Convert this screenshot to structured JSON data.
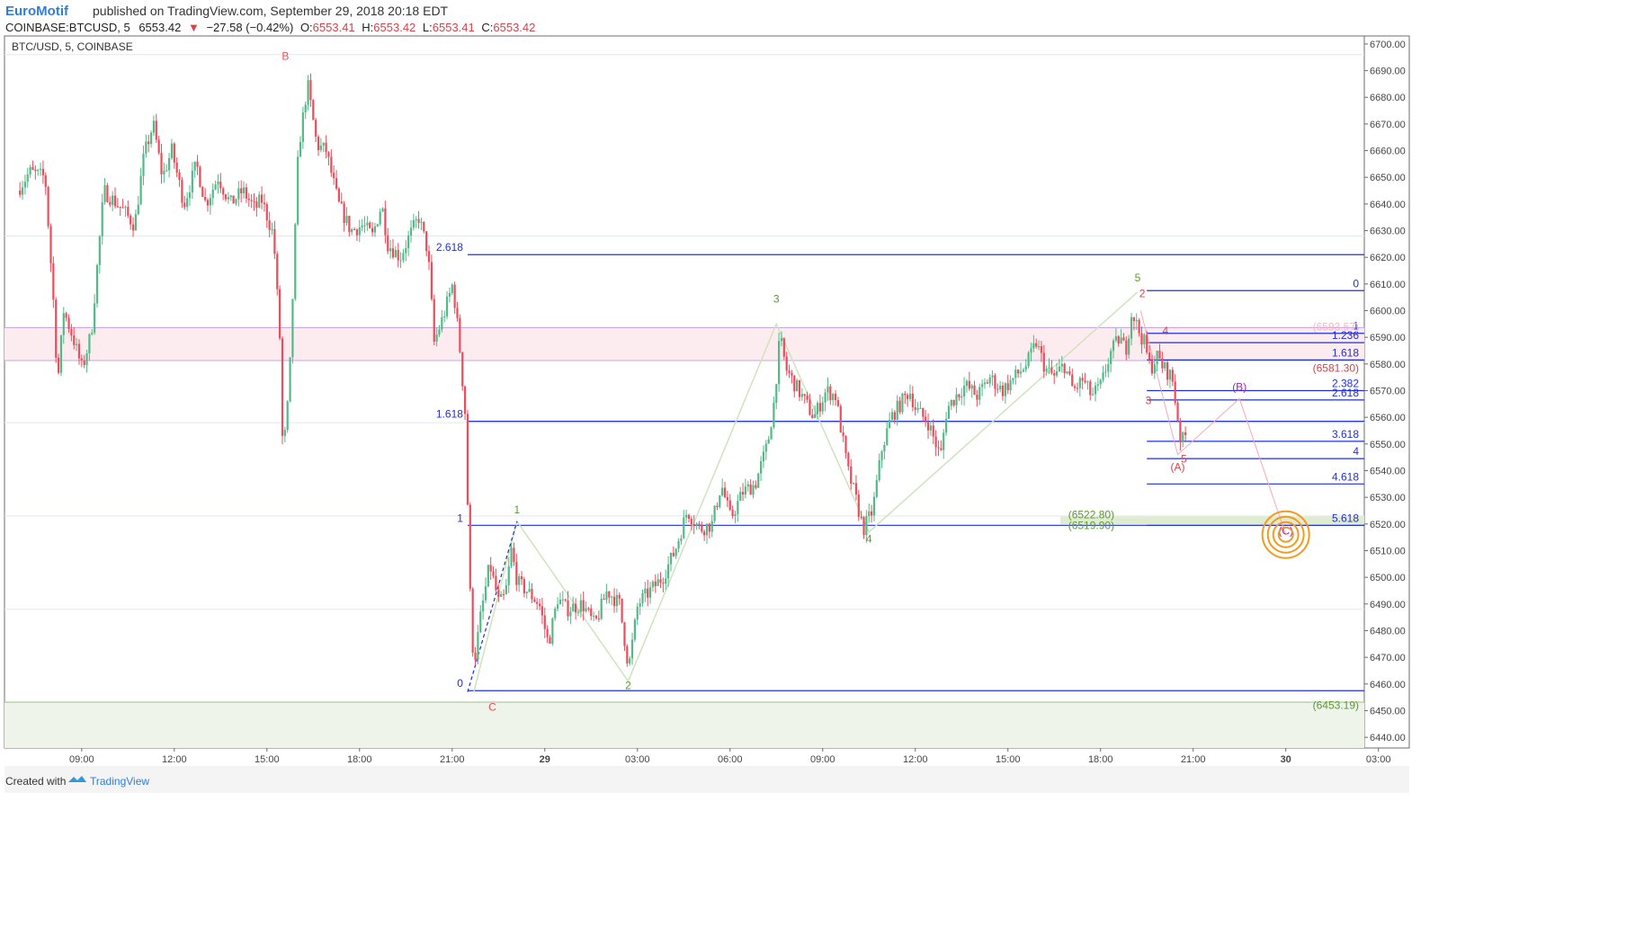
{
  "header": {
    "author": "EuroMotif",
    "published_text": "published on TradingView.com, September 29, 2018 20:18 EDT",
    "symbol": "COINBASE:BTCUSD, 5",
    "last_price": "6553.42",
    "change_arrow": "▼",
    "change": "−27.58 (−0.42%)",
    "o_label": "O:",
    "o_value": "6553.41",
    "h_label": "H:",
    "h_value": "6553.42",
    "l_label": "L:",
    "l_value": "6553.41",
    "c_label": "C:",
    "c_value": "6553.42"
  },
  "pane_title": "BTC/USD, 5, COINBASE",
  "footer": {
    "created_with": "Created with",
    "brand": "TradingView"
  },
  "colors": {
    "up": "#53b987",
    "down": "#eb4d5c",
    "blue_level": "#1f2fdc",
    "green_wave": "#5b9a2f",
    "red_wave": "#d0454c",
    "purple_wave": "#9c27b0",
    "zone_fill": "#fdecef",
    "bottom_fill": "#eef4ea",
    "target": "#f29a1f"
  },
  "chart_data": {
    "type": "candlestick",
    "ylim": [
      6436,
      6703
    ],
    "y_ticks": [
      "6700.00",
      "6690.00",
      "6680.00",
      "6670.00",
      "6660.00",
      "6650.00",
      "6640.00",
      "6630.00",
      "6620.00",
      "6610.00",
      "6600.00",
      "6590.00",
      "6580.00",
      "6570.00",
      "6560.00",
      "6550.00",
      "6540.00",
      "6530.00",
      "6520.00",
      "6510.00",
      "6500.00",
      "6490.00",
      "6480.00",
      "6470.00",
      "6460.00",
      "6450.00",
      "6440.00"
    ],
    "x_ticks": [
      {
        "label": "09:00",
        "t": 7.5
      },
      {
        "label": "12:00",
        "t": 10.5
      },
      {
        "label": "15:00",
        "t": 13.5
      },
      {
        "label": "18:00",
        "t": 16.5
      },
      {
        "label": "21:00",
        "t": 19.5
      },
      {
        "label": "29",
        "t": 22.5,
        "bold": true
      },
      {
        "label": "03:00",
        "t": 25.5
      },
      {
        "label": "06:00",
        "t": 28.5
      },
      {
        "label": "09:00",
        "t": 31.5
      },
      {
        "label": "12:00",
        "t": 34.5
      },
      {
        "label": "15:00",
        "t": 37.5
      },
      {
        "label": "18:00",
        "t": 40.5
      },
      {
        "label": "21:00",
        "t": 43.5
      },
      {
        "label": "30",
        "t": 46.5,
        "bold": true
      },
      {
        "label": "03:00",
        "t": 49.5
      }
    ],
    "price_path": [
      [
        5.5,
        6645
      ],
      [
        5.9,
        6652
      ],
      [
        6.4,
        6650
      ],
      [
        6.7,
        6598
      ],
      [
        6.8,
        6572
      ],
      [
        7.0,
        6600
      ],
      [
        7.3,
        6590
      ],
      [
        7.6,
        6578
      ],
      [
        7.9,
        6592
      ],
      [
        8.3,
        6645
      ],
      [
        8.9,
        6638
      ],
      [
        9.3,
        6632
      ],
      [
        9.6,
        6658
      ],
      [
        9.9,
        6670
      ],
      [
        10.2,
        6650
      ],
      [
        10.5,
        6660
      ],
      [
        10.9,
        6640
      ],
      [
        11.3,
        6655
      ],
      [
        11.6,
        6640
      ],
      [
        12.0,
        6650
      ],
      [
        12.4,
        6640
      ],
      [
        12.8,
        6645
      ],
      [
        13.2,
        6638
      ],
      [
        13.4,
        6642
      ],
      [
        13.8,
        6628
      ],
      [
        14.0,
        6590
      ],
      [
        14.1,
        6545
      ],
      [
        14.3,
        6570
      ],
      [
        14.6,
        6660
      ],
      [
        14.9,
        6685
      ],
      [
        15.2,
        6662
      ],
      [
        15.5,
        6660
      ],
      [
        15.9,
        6640
      ],
      [
        16.3,
        6630
      ],
      [
        16.7,
        6632
      ],
      [
        17.0,
        6628
      ],
      [
        17.3,
        6640
      ],
      [
        17.5,
        6625
      ],
      [
        17.9,
        6620
      ],
      [
        18.2,
        6628
      ],
      [
        18.5,
        6635
      ],
      [
        18.8,
        6622
      ],
      [
        19.0,
        6588
      ],
      [
        19.3,
        6598
      ],
      [
        19.6,
        6610
      ],
      [
        19.8,
        6590
      ],
      [
        20.0,
        6562
      ],
      [
        20.2,
        6480
      ],
      [
        20.3,
        6468
      ],
      [
        20.5,
        6485
      ],
      [
        20.8,
        6505
      ],
      [
        21.1,
        6490
      ],
      [
        21.3,
        6493
      ],
      [
        21.5,
        6510
      ],
      [
        21.7,
        6498
      ],
      [
        22.0,
        6495
      ],
      [
        22.4,
        6490
      ],
      [
        22.7,
        6475
      ],
      [
        23.0,
        6492
      ],
      [
        23.3,
        6488
      ],
      [
        23.8,
        6490
      ],
      [
        24.2,
        6482
      ],
      [
        24.6,
        6495
      ],
      [
        25.0,
        6490
      ],
      [
        25.3,
        6466
      ],
      [
        25.6,
        6490
      ],
      [
        26.0,
        6495
      ],
      [
        26.4,
        6500
      ],
      [
        26.8,
        6510
      ],
      [
        27.2,
        6525
      ],
      [
        27.6,
        6518
      ],
      [
        28.0,
        6520
      ],
      [
        28.3,
        6535
      ],
      [
        28.6,
        6522
      ],
      [
        29.0,
        6532
      ],
      [
        29.4,
        6535
      ],
      [
        29.8,
        6550
      ],
      [
        30.0,
        6565
      ],
      [
        30.2,
        6590
      ],
      [
        30.4,
        6578
      ],
      [
        30.6,
        6574
      ],
      [
        30.9,
        6568
      ],
      [
        31.3,
        6560
      ],
      [
        31.7,
        6570
      ],
      [
        32.0,
        6568
      ],
      [
        32.4,
        6540
      ],
      [
        32.6,
        6532
      ],
      [
        32.9,
        6518
      ],
      [
        33.2,
        6525
      ],
      [
        33.5,
        6548
      ],
      [
        33.8,
        6560
      ],
      [
        34.1,
        6565
      ],
      [
        34.4,
        6570
      ],
      [
        34.6,
        6563
      ],
      [
        35.0,
        6558
      ],
      [
        35.4,
        6545
      ],
      [
        35.6,
        6563
      ],
      [
        35.9,
        6568
      ],
      [
        36.2,
        6572
      ],
      [
        36.6,
        6568
      ],
      [
        37.0,
        6575
      ],
      [
        37.4,
        6570
      ],
      [
        37.8,
        6575
      ],
      [
        38.2,
        6580
      ],
      [
        38.5,
        6588
      ],
      [
        38.8,
        6578
      ],
      [
        39.1,
        6575
      ],
      [
        39.4,
        6580
      ],
      [
        39.7,
        6570
      ],
      [
        40.0,
        6574
      ],
      [
        40.3,
        6568
      ],
      [
        40.6,
        6572
      ],
      [
        40.9,
        6584
      ],
      [
        41.2,
        6590
      ],
      [
        41.4,
        6585
      ],
      [
        41.6,
        6600
      ],
      [
        41.8,
        6593
      ],
      [
        42.0,
        6588
      ],
      [
        42.2,
        6578
      ],
      [
        42.4,
        6583
      ],
      [
        42.6,
        6579
      ],
      [
        42.9,
        6575
      ],
      [
        43.2,
        6550
      ],
      [
        43.3,
        6553
      ]
    ],
    "levels": [
      {
        "label": "2.618",
        "price": 6621,
        "side": "left"
      },
      {
        "label": "1.618",
        "price": 6558.5,
        "side": "left"
      },
      {
        "label": "1",
        "price": 6519.5,
        "side": "left"
      },
      {
        "label": "0",
        "price": 6457.5,
        "side": "left"
      },
      {
        "label": "0",
        "price": 6607.5,
        "side": "right"
      },
      {
        "label": "1",
        "price": 6591.5,
        "side": "right"
      },
      {
        "label": "1.236",
        "price": 6588,
        "side": "right"
      },
      {
        "label": "1.618",
        "price": 6581.5,
        "side": "right"
      },
      {
        "label": "2.382",
        "price": 6570,
        "side": "right"
      },
      {
        "label": "2.618",
        "price": 6566.5,
        "side": "right"
      },
      {
        "label": "3.618",
        "price": 6551,
        "side": "right"
      },
      {
        "label": "4",
        "price": 6544.5,
        "side": "right"
      },
      {
        "label": "4.618",
        "price": 6535,
        "side": "right"
      },
      {
        "label": "5.618",
        "price": 6519.5,
        "side": "right"
      }
    ],
    "price_labels": [
      {
        "text": "(6593.57)",
        "price": 6594,
        "color": "#f4b7bf"
      },
      {
        "text": "(6581.30)",
        "price": 6578.5,
        "color": "#d0454c"
      },
      {
        "text": "(6522.80)",
        "price": 6523.5,
        "color": "#5b9a2f"
      },
      {
        "text": "(6519.90)",
        "price": 6519.5,
        "color": "#5b9a2f"
      },
      {
        "text": "(6453.19)",
        "price": 6452,
        "color": "#5b9a2f"
      }
    ],
    "wave_labels": [
      {
        "text": "B",
        "t": 14.1,
        "p": 6694,
        "color": "#eb4d5c"
      },
      {
        "text": "C",
        "t": 20.8,
        "p": 6450,
        "color": "#eb4d5c"
      },
      {
        "text": "1",
        "t": 21.6,
        "p": 6524,
        "color": "#5b9a2f"
      },
      {
        "text": "2",
        "t": 25.2,
        "p": 6458,
        "color": "#5b9a2f"
      },
      {
        "text": "3",
        "t": 30.0,
        "p": 6603,
        "color": "#5b9a2f"
      },
      {
        "text": "4",
        "t": 33.0,
        "p": 6513,
        "color": "#5b9a2f"
      },
      {
        "text": "5",
        "t": 41.7,
        "p": 6611,
        "color": "#5b9a2f"
      },
      {
        "text": "2",
        "t": 41.85,
        "p": 6605,
        "color": "#d0454c"
      },
      {
        "text": "3",
        "t": 42.05,
        "p": 6565,
        "color": "#d0454c"
      },
      {
        "text": "4",
        "t": 42.6,
        "p": 6591,
        "color": "#d0454c"
      },
      {
        "text": "5",
        "t": 43.2,
        "p": 6543,
        "color": "#d0454c"
      },
      {
        "text": "(A)",
        "t": 43.0,
        "p": 6540,
        "color": "#d0454c"
      },
      {
        "text": "(B)",
        "t": 45.0,
        "p": 6570,
        "color": "#9c27b0"
      },
      {
        "text": "(C)",
        "t": 46.5,
        "p": 6516,
        "color": "#9c27b0"
      }
    ]
  }
}
